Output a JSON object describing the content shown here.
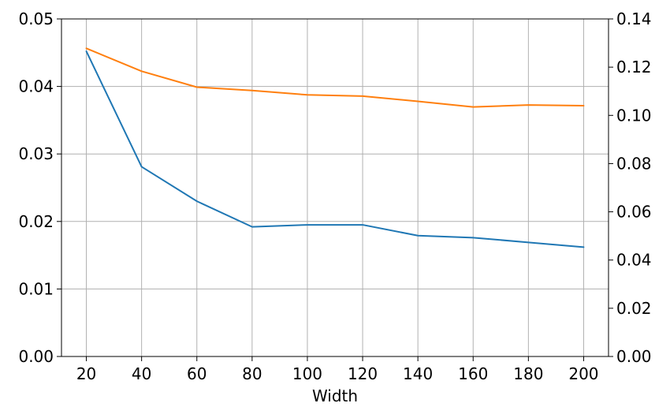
{
  "chart_data": {
    "type": "line",
    "title": "",
    "xlabel": "Width",
    "ylabel_left": "",
    "ylabel_right": "",
    "x": [
      20,
      40,
      60,
      80,
      100,
      120,
      140,
      160,
      180,
      200
    ],
    "xlim": [
      11,
      209
    ],
    "x_ticks": [
      20,
      40,
      60,
      80,
      100,
      120,
      140,
      160,
      180,
      200
    ],
    "y_left_lim": [
      0,
      0.05
    ],
    "y_left_ticks": [
      "0.00",
      "0.01",
      "0.02",
      "0.03",
      "0.04",
      "0.05"
    ],
    "y_right_lim": [
      0,
      0.14
    ],
    "y_right_ticks": [
      "0.00",
      "0.02",
      "0.04",
      "0.06",
      "0.08",
      "0.10",
      "0.12",
      "0.14"
    ],
    "grid": true,
    "legend": "none",
    "series": [
      {
        "axis": "left",
        "color": "#1f77b4",
        "values": [
          0.0452,
          0.0281,
          0.023,
          0.0192,
          0.0195,
          0.0195,
          0.0179,
          0.0176,
          0.0169,
          0.0162
        ]
      },
      {
        "axis": "right",
        "color": "#ff7f0e",
        "values": [
          0.1278,
          0.1183,
          0.1117,
          0.1103,
          0.1085,
          0.108,
          0.1058,
          0.1035,
          0.1043,
          0.104
        ]
      }
    ]
  }
}
